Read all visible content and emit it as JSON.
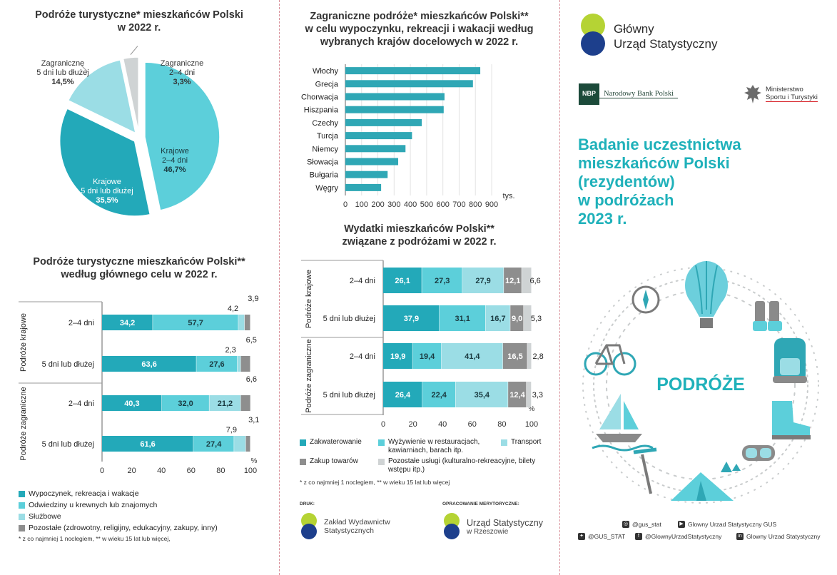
{
  "colors": {
    "c1": "#23a9b9",
    "c2": "#5ccfda",
    "c3": "#9bdde5",
    "c4": "#8e8e8e",
    "c5": "#cfd3d4",
    "bar": "#2fa7b5",
    "accent": "#1fb1ba"
  },
  "pie": {
    "title_line1": "Podróże turystyczne* mieszkańców Polski",
    "title_line2": "w 2022 r.",
    "chart_data": {
      "type": "pie",
      "slices": [
        {
          "label": [
            "Krajowe",
            "2–4 dni"
          ],
          "value": 46.7,
          "text": "46,7%"
        },
        {
          "label": [
            "Krajowe",
            "5 dni lub dłużej"
          ],
          "value": 35.5,
          "text": "35,5%"
        },
        {
          "label": [
            "Zagraniczne",
            "5 dni lub dłużej"
          ],
          "value": 14.5,
          "text": "14,5%"
        },
        {
          "label": [
            "Zagraniczne",
            "2–4 dni"
          ],
          "value": 3.3,
          "text": "3,3%"
        }
      ]
    }
  },
  "purpose": {
    "title_line1": "Podróże turystyczne mieszkańców Polski**",
    "title_line2": "według głównego celu w 2022 r.",
    "chart_data": {
      "type": "bar",
      "orientation": "horizontal-stacked",
      "groups": [
        "Podróże krajowe",
        "Podróże zagraniczne"
      ],
      "categories": [
        "2–4 dni",
        "5 dni lub dłużej",
        "2–4 dni",
        "5 dni lub dłużej"
      ],
      "series": [
        {
          "name": "Wypoczynek, rekreacja i wakacje",
          "values": [
            34.2,
            63.6,
            40.3,
            61.6
          ],
          "labels": [
            "34,2",
            "63,6",
            "40,3",
            "61,6"
          ]
        },
        {
          "name": "Odwiedziny u krewnych lub znajomych",
          "values": [
            57.7,
            27.6,
            32.0,
            27.4
          ],
          "labels": [
            "57,7",
            "27,6",
            "32,0",
            "27,4"
          ]
        },
        {
          "name": "Służbowe",
          "values": [
            4.2,
            2.3,
            21.2,
            7.9
          ],
          "labels": [
            "4,2",
            "2,3",
            "21,2",
            "7,9"
          ]
        },
        {
          "name": "Pozostałe (zdrowotny, religijny, edukacyjny, zakupy, inny)",
          "values": [
            3.9,
            6.5,
            6.6,
            3.1
          ],
          "labels": [
            "3,9",
            "6,5",
            "6,6",
            "3,1"
          ]
        }
      ],
      "xlim": [
        0,
        100
      ],
      "xticks": [
        "0",
        "20",
        "40",
        "60",
        "80",
        "100"
      ],
      "unit": "%"
    },
    "note": "* z co najmniej 1 noclegiem,  ** w wieku 15 lat lub więcej,"
  },
  "countries": {
    "title_line1": "Zagraniczne podróże* mieszkańców Polski**",
    "title_line2": "w celu wypoczynku, rekreacji i wakacji według",
    "title_line3": "wybranych krajów docelowych w 2022 r.",
    "chart_data": {
      "type": "bar",
      "orientation": "horizontal",
      "categories": [
        "Włochy",
        "Grecja",
        "Chorwacja",
        "Hiszpania",
        "Czechy",
        "Turcja",
        "Niemcy",
        "Słowacja",
        "Bułgaria",
        "Węgry"
      ],
      "values": [
        830,
        785,
        610,
        605,
        470,
        410,
        370,
        325,
        260,
        220
      ],
      "xlim": [
        0,
        900
      ],
      "xticks": [
        "0",
        "100",
        "200",
        "300",
        "400",
        "500",
        "600",
        "700",
        "800",
        "900"
      ],
      "unit": "tys."
    }
  },
  "expenses": {
    "title_line1": "Wydatki mieszkańców Polski**",
    "title_line2": "związane z podróżami w 2022 r.",
    "chart_data": {
      "type": "bar",
      "orientation": "horizontal-stacked",
      "groups": [
        "Podróże krajowe",
        "Podróże zagraniczne"
      ],
      "categories": [
        "2–4 dni",
        "5 dni lub dłużej",
        "2–4 dni",
        "5 dni lub dłużej"
      ],
      "series": [
        {
          "name": "Zakwaterowanie",
          "values": [
            26.1,
            37.9,
            19.9,
            26.4
          ],
          "labels": [
            "26,1",
            "37,9",
            "19,9",
            "26,4"
          ]
        },
        {
          "name": "Wyżywienie w restauracjach, kawiarniach, barach itp.",
          "values": [
            27.3,
            31.1,
            19.4,
            22.4
          ],
          "labels": [
            "27,3",
            "31,1",
            "19,4",
            "22,4"
          ]
        },
        {
          "name": "Transport",
          "values": [
            27.9,
            16.7,
            41.4,
            35.4
          ],
          "labels": [
            "27,9",
            "16,7",
            "41,4",
            "35,4"
          ]
        },
        {
          "name": "Zakup towarów",
          "values": [
            12.1,
            9.0,
            16.5,
            12.4
          ],
          "labels": [
            "12,1",
            "9,0",
            "16,5",
            "12,4"
          ]
        },
        {
          "name": "Pozostałe usługi (kulturalno-rekreacyjne, bilety wstępu itp.)",
          "values": [
            6.6,
            5.3,
            2.8,
            3.3
          ],
          "labels": [
            "6,6",
            "5,3",
            "2,8",
            "3,3"
          ]
        }
      ],
      "xlim": [
        0,
        100
      ],
      "xticks": [
        "0",
        "20",
        "40",
        "60",
        "80",
        "100"
      ],
      "unit": "%"
    },
    "note": "* z co najmniej 1 noclegiem,  ** w wieku 15 lat lub więcej",
    "druk_label": "DRUK:",
    "druk_name1": "Zakład Wydawnictw",
    "druk_name2": "Statystycznych",
    "opr_label": "OPRACOWANIE MERYTORYCZNE:",
    "opr_name1": "Urząd Statystyczny",
    "opr_name2": "w Rzeszowie"
  },
  "right": {
    "gus_line1": "Główny",
    "gus_line2": "Urząd Statystyczny",
    "nbp_badge": "NBP",
    "nbp_name": "Narodowy Bank Polski",
    "ministry_line1": "Ministerstwo",
    "ministry_line2": "Sportu i Turystyki",
    "report_title": [
      "Badanie uczestnictwa",
      "mieszkańców Polski",
      "(rezydentów)",
      "w podróżach",
      "2023 r."
    ],
    "topic": "PODRÓŻE",
    "social": {
      "instagram": "@gus_stat",
      "youtube": "Glowny Urzad Statystyczny GUS",
      "twitter": "@GUS_STAT",
      "facebook": "@GlownyUrzadStatystyczny",
      "linkedin": "Glowny Urzad Statystyczny"
    }
  }
}
